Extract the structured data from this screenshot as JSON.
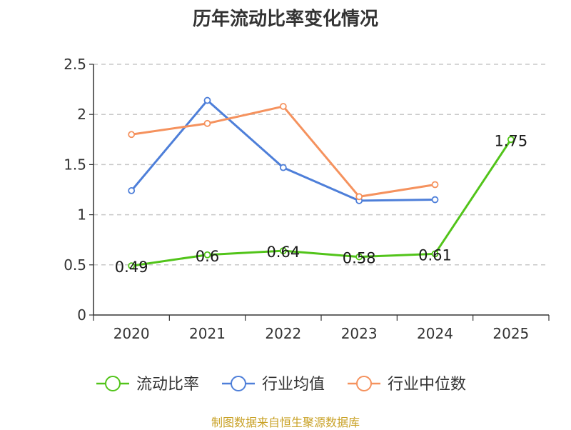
{
  "chart_data": {
    "type": "line",
    "title": "历年流动比率变化情况",
    "categories": [
      "2020",
      "2021",
      "2022",
      "2023",
      "2024",
      "2025"
    ],
    "ylim": [
      0,
      2.5
    ],
    "yticks": [
      "0",
      "0.5",
      "1",
      "1.5",
      "2",
      "2.5"
    ],
    "grid": true,
    "legend_position": "bottom",
    "series": [
      {
        "name": "流动比率",
        "color": "#52C41A",
        "values": [
          0.49,
          0.6,
          0.64,
          0.58,
          0.61,
          1.75
        ],
        "labels": [
          "0.49",
          "0.6",
          "0.64",
          "0.58",
          "0.61",
          "1.75"
        ]
      },
      {
        "name": "行业均值",
        "color": "#4E7FD9",
        "values": [
          1.24,
          2.14,
          1.47,
          1.14,
          1.15,
          null
        ]
      },
      {
        "name": "行业中位数",
        "color": "#F5925E",
        "values": [
          1.8,
          1.91,
          2.08,
          1.18,
          1.3,
          null
        ]
      }
    ]
  },
  "footer": "制图数据来自恒生聚源数据库"
}
